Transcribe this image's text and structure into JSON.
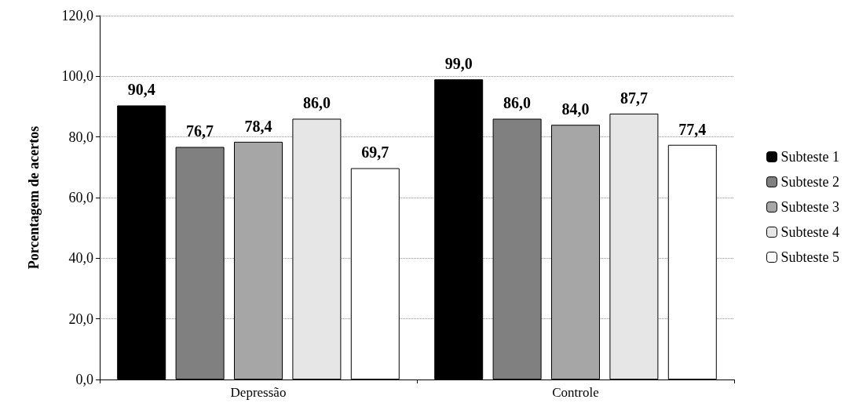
{
  "chart_data": {
    "type": "bar",
    "ylabel": "Porcentagem de acertos",
    "categories": [
      "Depressão",
      "Controle"
    ],
    "series": [
      {
        "name": "Subteste 1",
        "color": "#000000",
        "values": [
          90.4,
          99.0
        ],
        "value_labels": [
          "90,4",
          "99,0"
        ]
      },
      {
        "name": "Subteste 2",
        "color": "#808080",
        "values": [
          76.7,
          86.0
        ],
        "value_labels": [
          "76,7",
          "86,0"
        ]
      },
      {
        "name": "Subteste 3",
        "color": "#a6a6a6",
        "values": [
          78.4,
          84.0
        ],
        "value_labels": [
          "78,4",
          "84,0"
        ]
      },
      {
        "name": "Subteste 4",
        "color": "#e6e6e6",
        "values": [
          86.0,
          87.7
        ],
        "value_labels": [
          "86,0",
          "87,7"
        ]
      },
      {
        "name": "Subteste 5",
        "color": "#ffffff",
        "values": [
          69.7,
          77.4
        ],
        "value_labels": [
          "69,7",
          "77,4"
        ]
      }
    ],
    "ylim": [
      0,
      120
    ],
    "yticks": [
      {
        "value": 0,
        "label": "0,0"
      },
      {
        "value": 20,
        "label": "20,0"
      },
      {
        "value": 40,
        "label": "40,0"
      },
      {
        "value": 60,
        "label": "60,0"
      },
      {
        "value": 80,
        "label": "80,0"
      },
      {
        "value": 100,
        "label": "100,0"
      },
      {
        "value": 120,
        "label": "120,0"
      }
    ],
    "grid": "y",
    "legend": "right"
  }
}
